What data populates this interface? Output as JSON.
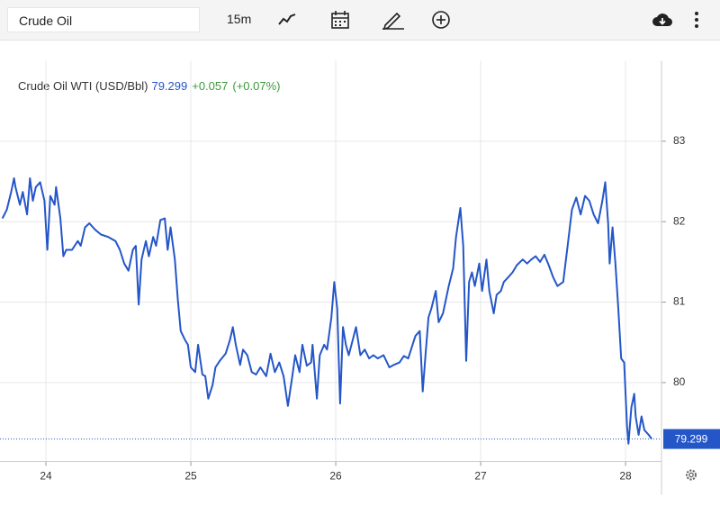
{
  "toolbar": {
    "search": "Crude Oil",
    "interval": "15m"
  },
  "chart_data": {
    "type": "line",
    "title": "Crude Oil WTI (USD/Bbl)",
    "last_price": 79.299,
    "change": "+0.057",
    "change_pct": "(+0.07%)",
    "color": "#2456c8",
    "grid": true,
    "xlim": [
      23.683,
      28.248
    ],
    "xticks": [
      24,
      25,
      26,
      27,
      28
    ],
    "ylim": [
      79.02,
      84.0
    ],
    "yticks": [
      80,
      81,
      82,
      83
    ],
    "x": [
      23.7,
      23.73,
      23.76,
      23.78,
      23.79,
      23.82,
      23.84,
      23.87,
      23.89,
      23.91,
      23.93,
      23.96,
      23.99,
      24.01,
      24.03,
      24.06,
      24.07,
      24.1,
      24.12,
      24.14,
      24.18,
      24.22,
      24.24,
      24.27,
      24.3,
      24.34,
      24.38,
      24.43,
      24.48,
      24.51,
      24.54,
      24.57,
      24.6,
      24.62,
      24.64,
      24.66,
      24.69,
      24.71,
      24.74,
      24.76,
      24.79,
      24.82,
      24.84,
      24.86,
      24.89,
      24.91,
      24.93,
      24.96,
      24.98,
      25.0,
      25.03,
      25.05,
      25.08,
      25.1,
      25.12,
      25.15,
      25.17,
      25.2,
      25.24,
      25.27,
      25.29,
      25.31,
      25.34,
      25.36,
      25.39,
      25.42,
      25.45,
      25.48,
      25.52,
      25.55,
      25.58,
      25.61,
      25.64,
      25.67,
      25.7,
      25.72,
      25.75,
      25.77,
      25.8,
      25.83,
      25.84,
      25.87,
      25.89,
      25.92,
      25.94,
      25.97,
      25.99,
      26.01,
      26.03,
      26.05,
      26.07,
      26.09,
      26.12,
      26.14,
      26.17,
      26.2,
      26.23,
      26.26,
      26.29,
      26.33,
      26.37,
      26.4,
      26.44,
      26.47,
      26.5,
      26.53,
      26.55,
      26.58,
      26.6,
      26.62,
      26.64,
      26.66,
      26.69,
      26.71,
      26.74,
      26.78,
      26.81,
      26.83,
      26.86,
      26.88,
      26.9,
      26.92,
      26.94,
      26.96,
      26.99,
      27.01,
      27.04,
      27.06,
      27.09,
      27.11,
      27.14,
      27.16,
      27.19,
      27.22,
      27.25,
      27.29,
      27.32,
      27.35,
      27.38,
      27.41,
      27.44,
      27.47,
      27.5,
      27.53,
      27.57,
      27.6,
      27.63,
      27.66,
      27.69,
      27.72,
      27.75,
      27.78,
      27.81,
      27.84,
      27.86,
      27.88,
      27.89,
      27.91,
      27.93,
      27.95,
      27.97,
      27.99,
      28.01,
      28.02,
      28.04,
      28.06,
      28.07,
      28.09,
      28.11,
      28.13,
      28.16,
      28.18
    ],
    "values": [
      82.04,
      82.15,
      82.37,
      82.54,
      82.43,
      82.21,
      82.37,
      82.09,
      82.54,
      82.26,
      82.43,
      82.49,
      82.26,
      81.65,
      82.32,
      82.21,
      82.43,
      82.04,
      81.57,
      81.65,
      81.65,
      81.76,
      81.7,
      81.93,
      81.98,
      81.9,
      81.84,
      81.81,
      81.76,
      81.65,
      81.48,
      81.39,
      81.65,
      81.7,
      80.97,
      81.53,
      81.76,
      81.57,
      81.81,
      81.7,
      82.02,
      82.04,
      81.65,
      81.93,
      81.53,
      81.03,
      80.64,
      80.53,
      80.47,
      80.19,
      80.13,
      80.47,
      80.1,
      80.08,
      79.8,
      79.97,
      80.19,
      80.27,
      80.36,
      80.53,
      80.69,
      80.47,
      80.22,
      80.41,
      80.34,
      80.13,
      80.1,
      80.19,
      80.08,
      80.36,
      80.13,
      80.25,
      80.08,
      79.71,
      80.08,
      80.34,
      80.13,
      80.47,
      80.21,
      80.25,
      80.47,
      79.8,
      80.34,
      80.47,
      80.41,
      80.81,
      81.25,
      80.92,
      79.74,
      80.69,
      80.47,
      80.34,
      80.55,
      80.69,
      80.34,
      80.41,
      80.3,
      80.34,
      80.3,
      80.34,
      80.19,
      80.22,
      80.25,
      80.33,
      80.3,
      80.47,
      80.58,
      80.64,
      79.89,
      80.36,
      80.81,
      80.92,
      81.14,
      80.75,
      80.86,
      81.2,
      81.42,
      81.81,
      82.17,
      81.7,
      80.27,
      81.25,
      81.37,
      81.2,
      81.48,
      81.14,
      81.53,
      81.14,
      80.86,
      81.09,
      81.14,
      81.25,
      81.31,
      81.37,
      81.46,
      81.53,
      81.48,
      81.53,
      81.57,
      81.5,
      81.59,
      81.46,
      81.31,
      81.2,
      81.25,
      81.7,
      82.15,
      82.3,
      82.09,
      82.32,
      82.26,
      82.09,
      81.98,
      82.26,
      82.49,
      81.98,
      81.48,
      81.93,
      81.48,
      80.92,
      80.3,
      80.25,
      79.46,
      79.24,
      79.69,
      79.86,
      79.58,
      79.35,
      79.58,
      79.41,
      79.35,
      79.299
    ]
  }
}
